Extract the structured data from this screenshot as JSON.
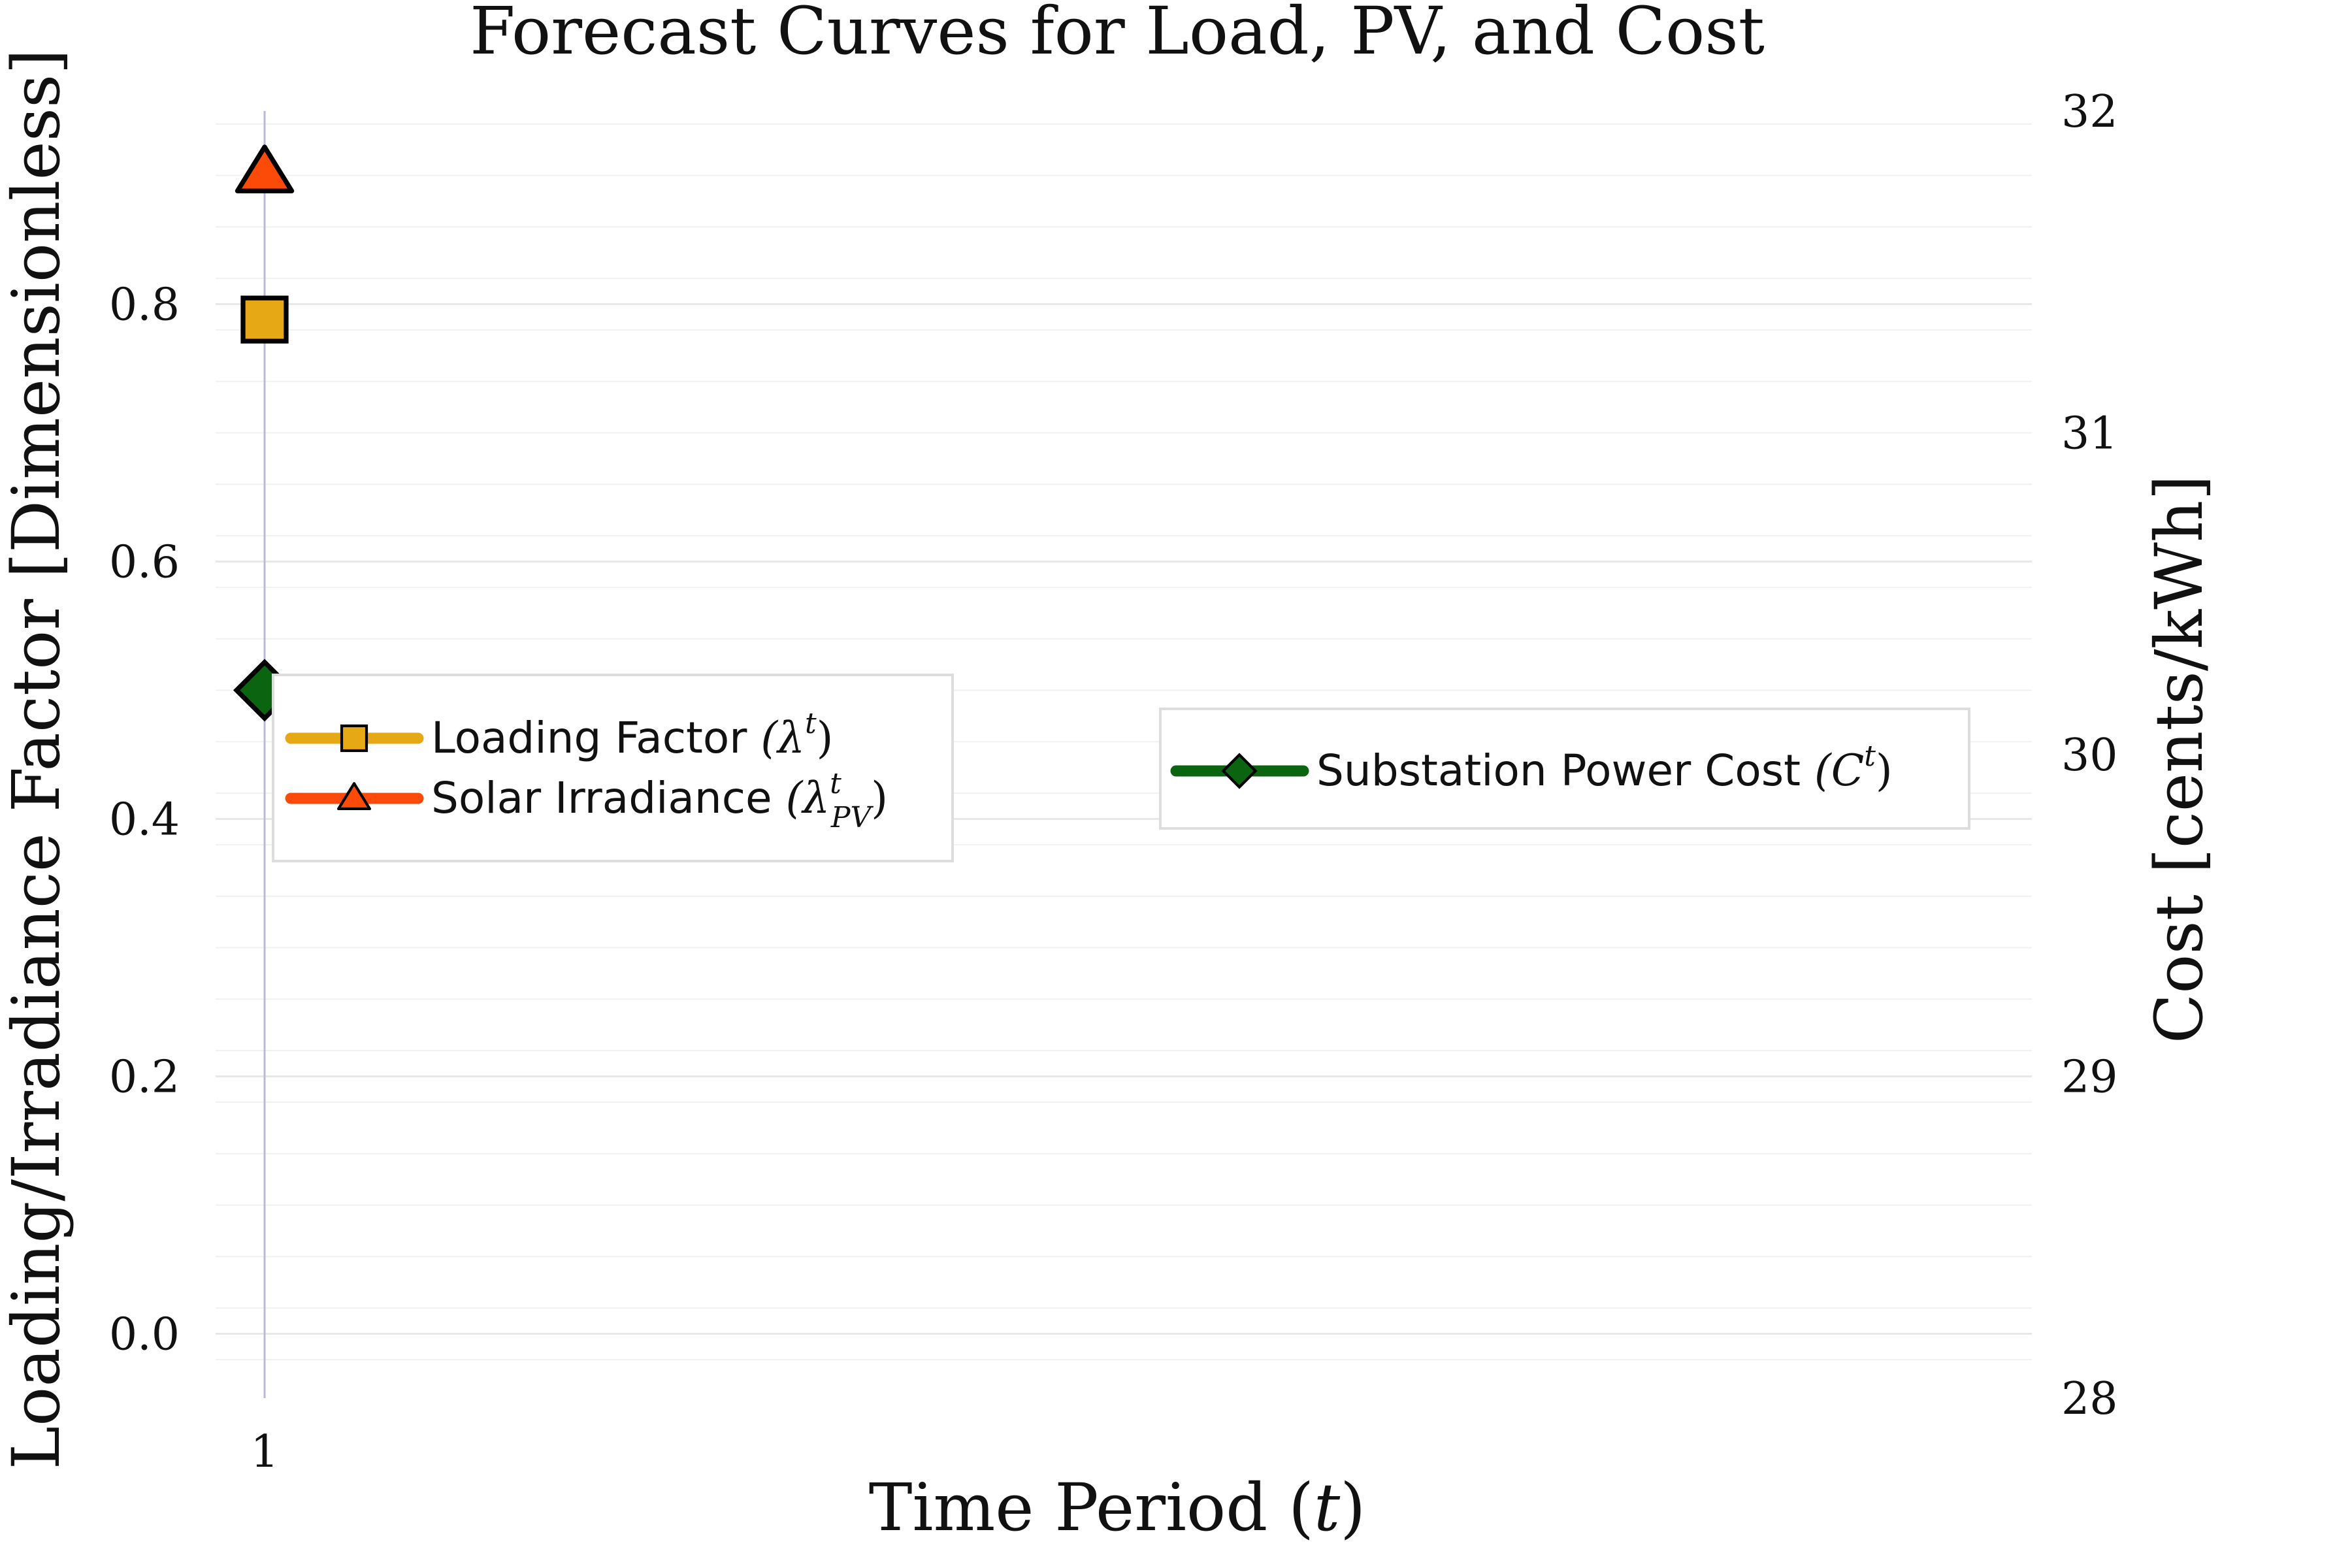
{
  "chart_data": {
    "type": "line",
    "title": "Forecast Curves for Load, PV, and Cost",
    "xlabel_main": "Time Period",
    "xlabel_var": "t",
    "ylabel_left": "Loading/Irradiance Factor [Dimensionless]",
    "ylabel_right": "Cost [cents/kWh]",
    "x": [
      1
    ],
    "x_ticks": [
      "1"
    ],
    "y_left_ticks": [
      "0.0",
      "0.2",
      "0.4",
      "0.6",
      "0.8"
    ],
    "y_left_tick_values": [
      0,
      0.2,
      0.4,
      0.6,
      0.8
    ],
    "y_left_range": [
      -0.05,
      0.95
    ],
    "y_right_ticks": [
      "28",
      "29",
      "30",
      "31",
      "32"
    ],
    "y_right_tick_values": [
      28,
      29,
      30,
      31,
      32
    ],
    "y_right_range": [
      28,
      32
    ],
    "grid": true,
    "series": [
      {
        "name": "Loading Factor",
        "math": "(λ",
        "sup": "t",
        "sub": "",
        "close": ")",
        "axis": "left",
        "marker": "square",
        "color": "#E6A915",
        "values": [
          0.788
        ]
      },
      {
        "name": "Solar Irradiance",
        "math": "(λ",
        "sup": "t",
        "sub": "PV",
        "close": ")",
        "axis": "left",
        "marker": "triangle",
        "color": "#FC4B08",
        "values": [
          0.902
        ]
      },
      {
        "name": "Substation Power Cost",
        "math": "(C",
        "sup": "t",
        "sub": "",
        "close": ")",
        "axis": "right",
        "marker": "diamond",
        "color": "#0B6410",
        "values": [
          30.2
        ]
      }
    ],
    "legend_left_placement": "center-left",
    "legend_right_placement": "center-right"
  }
}
